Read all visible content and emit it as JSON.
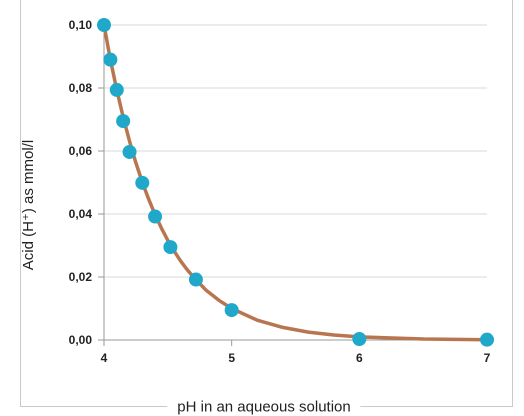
{
  "chart_data": {
    "type": "line",
    "title": "",
    "xlabel": "pH in an aqueous solution",
    "ylabel": "Acid (H⁺) as mmol/l",
    "xlim": [
      4,
      7
    ],
    "ylim": [
      0,
      0.1
    ],
    "x_ticks": [
      {
        "value": 4,
        "label": "4"
      },
      {
        "value": 5,
        "label": "5"
      },
      {
        "value": 6,
        "label": "6"
      },
      {
        "value": 7,
        "label": "7"
      }
    ],
    "y_ticks": [
      {
        "value": 0.0,
        "label": "0,00"
      },
      {
        "value": 0.02,
        "label": "0,02"
      },
      {
        "value": 0.04,
        "label": "0,04"
      },
      {
        "value": 0.06,
        "label": "0,06"
      },
      {
        "value": 0.08,
        "label": "0,08"
      },
      {
        "value": 0.1,
        "label": "0,10"
      }
    ],
    "grid": "horizontal",
    "series": [
      {
        "curve": [
          [
            4.0,
            0.1
          ],
          [
            4.05,
            0.089
          ],
          [
            4.1,
            0.0794
          ],
          [
            4.15,
            0.0708
          ],
          [
            4.2,
            0.0631
          ],
          [
            4.25,
            0.0562
          ],
          [
            4.3,
            0.0501
          ],
          [
            4.35,
            0.0447
          ],
          [
            4.4,
            0.0398
          ],
          [
            4.45,
            0.0355
          ],
          [
            4.5,
            0.0316
          ],
          [
            4.55,
            0.0282
          ],
          [
            4.6,
            0.0251
          ],
          [
            4.65,
            0.0224
          ],
          [
            4.7,
            0.02
          ],
          [
            4.8,
            0.0158
          ],
          [
            4.9,
            0.0126
          ],
          [
            5.0,
            0.01
          ],
          [
            5.2,
            0.0063
          ],
          [
            5.4,
            0.004
          ],
          [
            5.6,
            0.0025
          ],
          [
            5.8,
            0.0016
          ],
          [
            6.0,
            0.001
          ],
          [
            6.5,
            0.0003
          ],
          [
            7.0,
            0.0001
          ]
        ],
        "points": [
          [
            4.0,
            0.1
          ],
          [
            4.05,
            0.089
          ],
          [
            4.1,
            0.0794
          ],
          [
            4.15,
            0.0695
          ],
          [
            4.2,
            0.0597
          ],
          [
            4.3,
            0.0499
          ],
          [
            4.4,
            0.0392
          ],
          [
            4.52,
            0.0295
          ],
          [
            4.72,
            0.0192
          ],
          [
            5.0,
            0.0095
          ],
          [
            6.0,
            0.0003
          ],
          [
            7.0,
            0.0001
          ]
        ]
      }
    ],
    "colors": {
      "line": "#b7764f",
      "point": "#1fa8c9",
      "grid": "#d9d9d9",
      "axis": "#9a9a9a",
      "tick_text": "#222222"
    }
  }
}
